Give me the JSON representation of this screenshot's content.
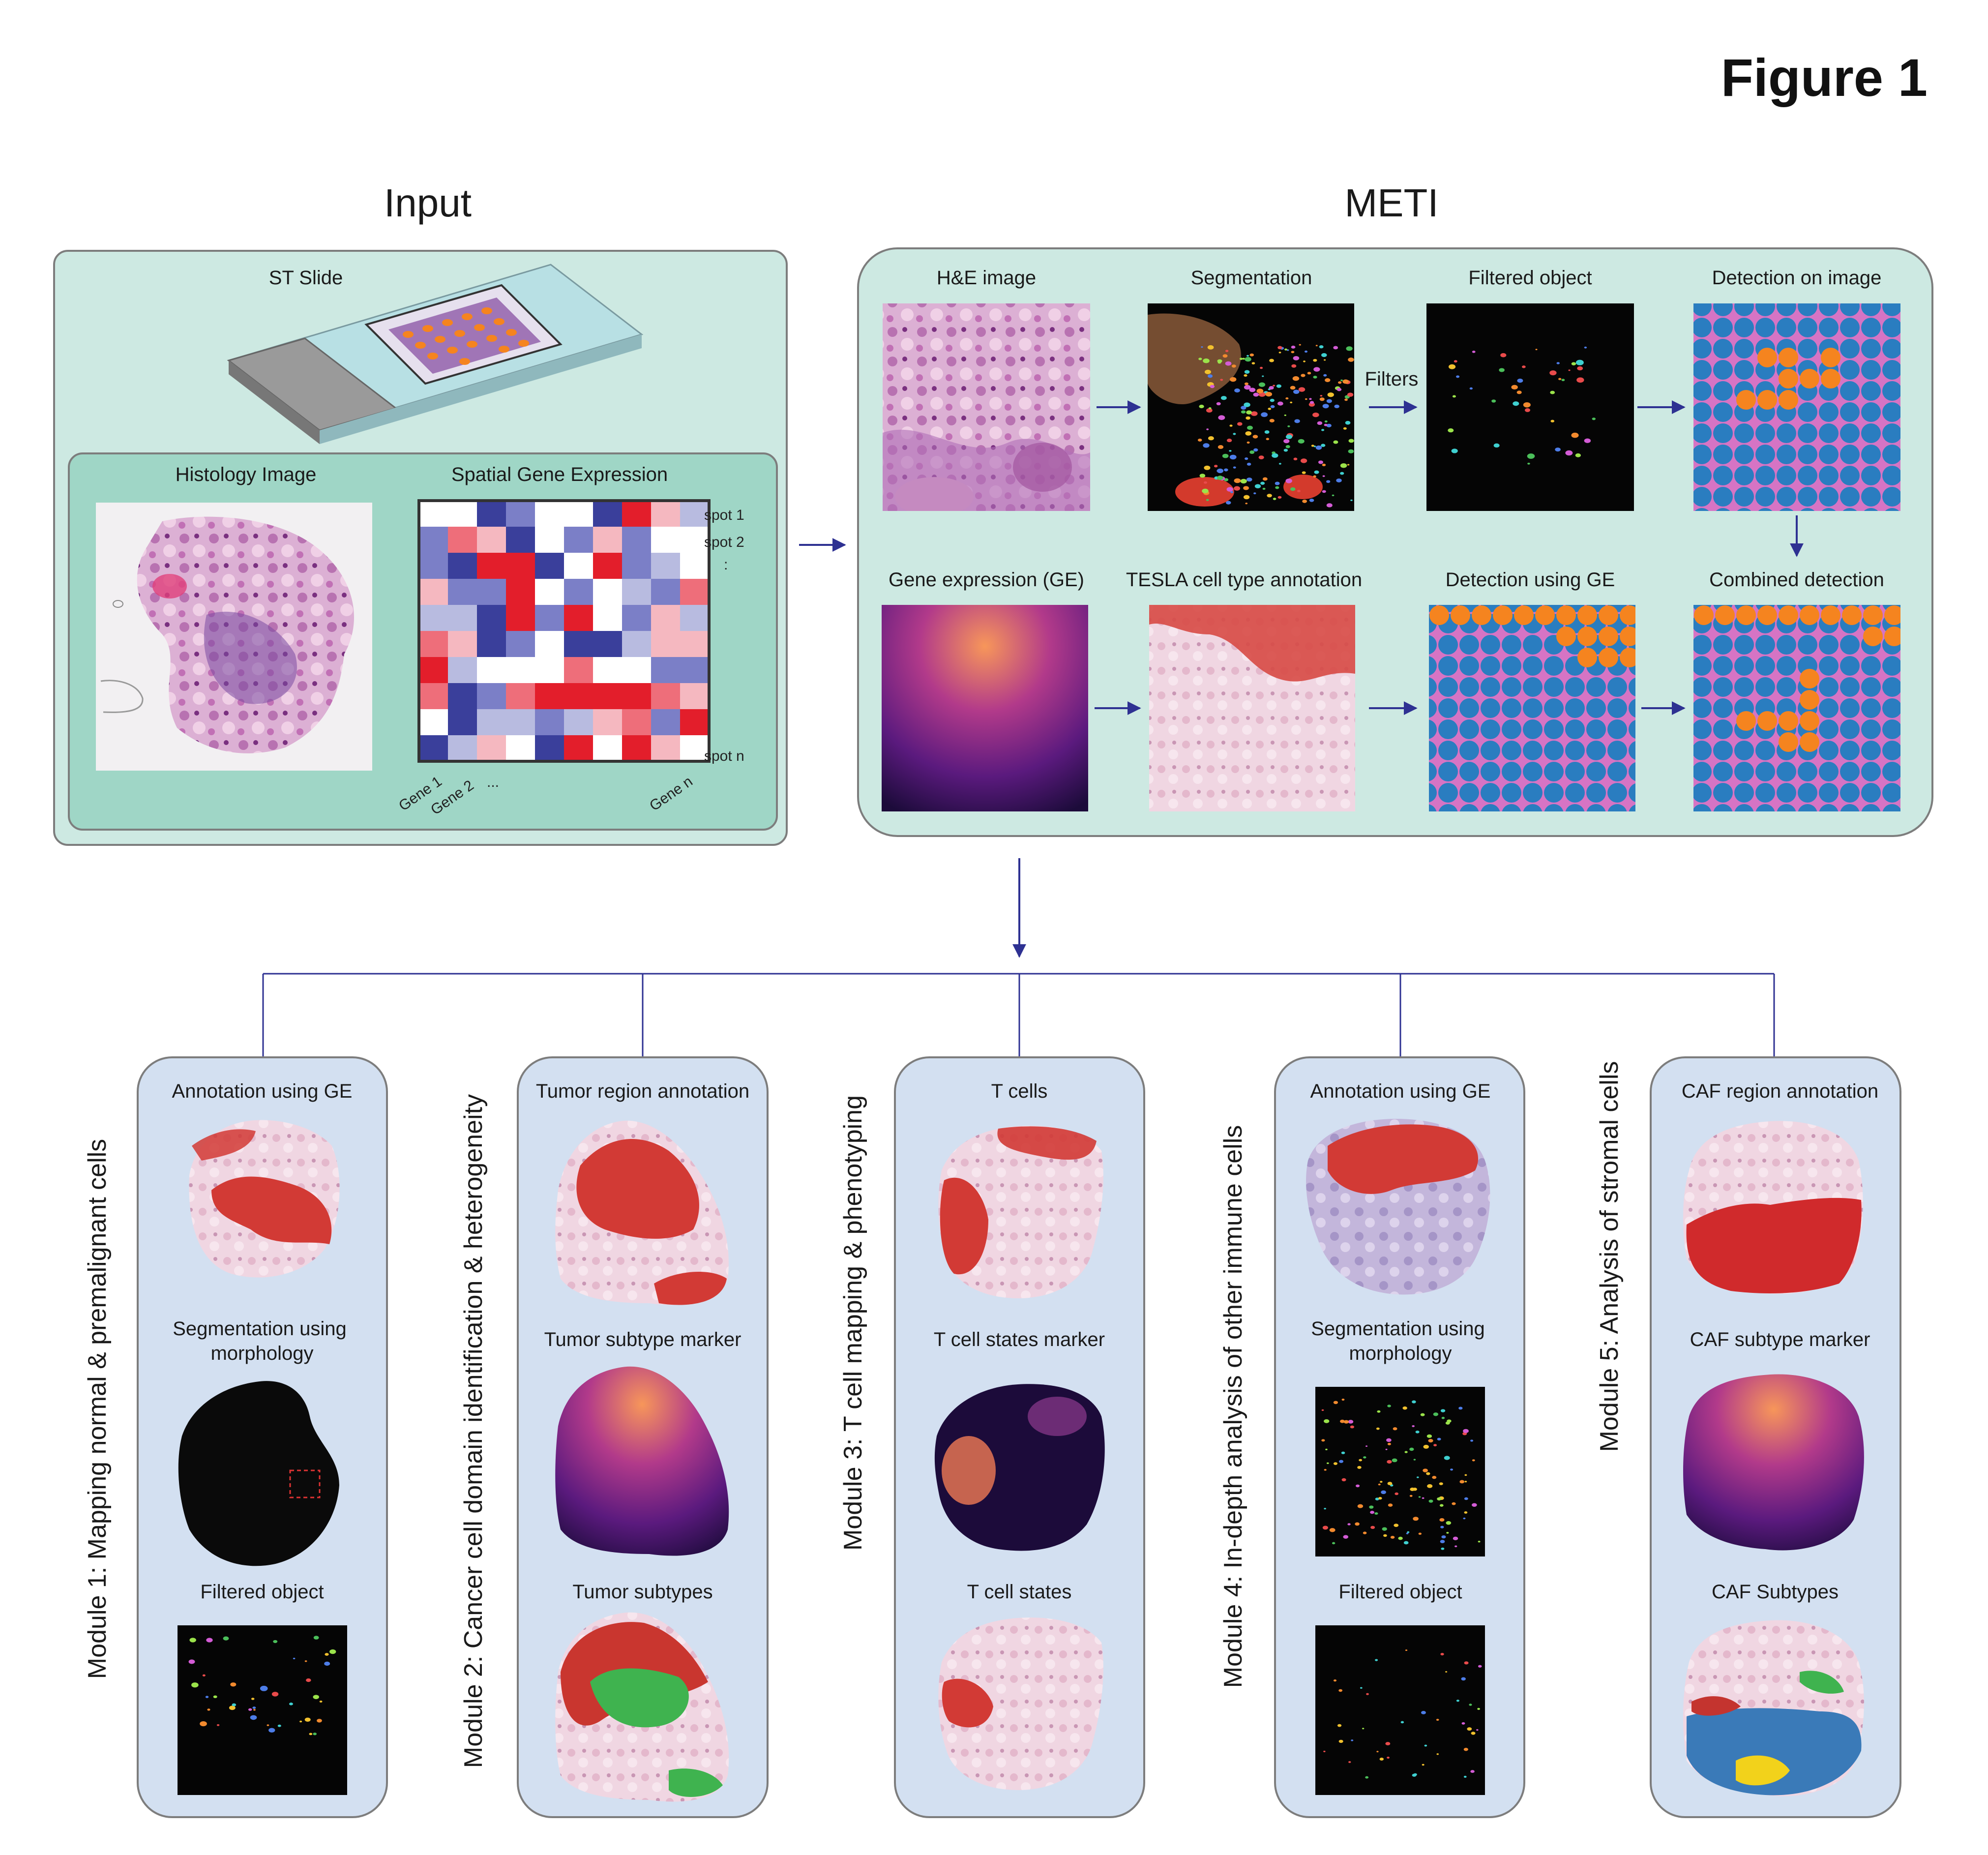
{
  "figure_title": "Figure 1",
  "input": {
    "title": "Input",
    "st_slide": "ST Slide",
    "histology": "Histology Image",
    "spatial": "Spatial Gene Expression",
    "spots": [
      "spot 1",
      "spot 2",
      ":",
      "spot n"
    ],
    "genes": [
      "Gene 1",
      "Gene 2",
      "...",
      "Gene n"
    ]
  },
  "meti": {
    "title": "METI",
    "he_image": "H&E image",
    "segmentation": "Segmentation",
    "filters": "Filters",
    "filtered_object": "Filtered object",
    "detection_image": "Detection on image",
    "gene_expression": "Gene expression (GE)",
    "tesla": "TESLA cell type annotation",
    "detection_ge": "Detection using GE",
    "combined": "Combined detection"
  },
  "modules": [
    {
      "title": "Module 1: Mapping normal & premalignant cells",
      "labels": [
        "Annotation using GE",
        "Segmentation using",
        "morphology",
        "Filtered object"
      ]
    },
    {
      "title": "Module 2: Cancer cell domain identification & heterogeneity",
      "labels": [
        "Tumor region annotation",
        "Tumor subtype marker",
        "Tumor subtypes"
      ]
    },
    {
      "title": "Module 3: T cell mapping & phenotyping",
      "labels": [
        "T cells",
        "T cell states marker",
        "T cell states"
      ]
    },
    {
      "title": "Module 4: In-depth analysis of other immune cells",
      "labels": [
        "Annotation using GE",
        "Segmentation using",
        "morphology",
        "Filtered object"
      ]
    },
    {
      "title": "Module 5: Analysis of stromal cells",
      "labels": [
        "CAF region annotation",
        "CAF subtype marker",
        "CAF Subtypes"
      ]
    }
  ],
  "colors": {
    "panel_fill": "#cde9e2",
    "module_fill": "#d3e0f1",
    "arrow": "#2e3192",
    "blue_cell": "#2a7dc0",
    "orange_cell": "#f5841f",
    "tumor_red": "#d23a35"
  }
}
